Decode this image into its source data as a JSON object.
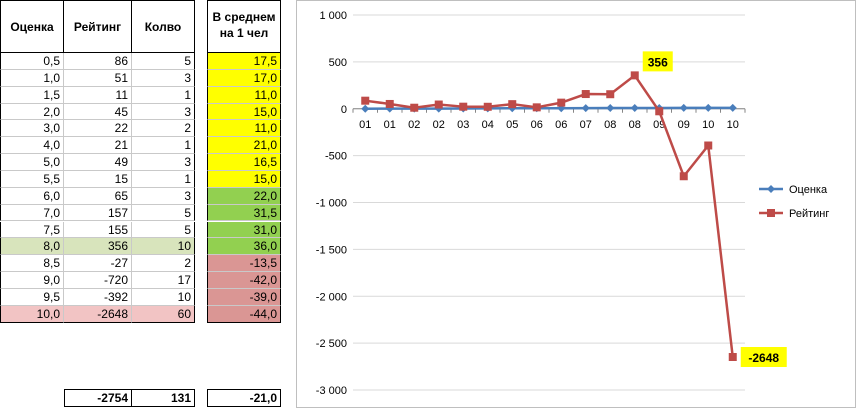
{
  "table": {
    "headers": {
      "rating": "Оценка",
      "score": "Рейтинг",
      "count": "Колво",
      "avg_line1": "В среднем",
      "avg_line2": "на 1 чел"
    },
    "rows": [
      {
        "rating": "0,5",
        "score": "86",
        "count": "5",
        "avg": "17,5",
        "avg_color": "yellow",
        "row_highlight": ""
      },
      {
        "rating": "1,0",
        "score": "51",
        "count": "3",
        "avg": "17,0",
        "avg_color": "yellow",
        "row_highlight": ""
      },
      {
        "rating": "1,5",
        "score": "11",
        "count": "1",
        "avg": "11,0",
        "avg_color": "yellow",
        "row_highlight": ""
      },
      {
        "rating": "2,0",
        "score": "45",
        "count": "3",
        "avg": "15,0",
        "avg_color": "yellow",
        "row_highlight": ""
      },
      {
        "rating": "3,0",
        "score": "22",
        "count": "2",
        "avg": "11,0",
        "avg_color": "yellow",
        "row_highlight": ""
      },
      {
        "rating": "4,0",
        "score": "21",
        "count": "1",
        "avg": "21,0",
        "avg_color": "yellow",
        "row_highlight": ""
      },
      {
        "rating": "5,0",
        "score": "49",
        "count": "3",
        "avg": "16,5",
        "avg_color": "yellow",
        "row_highlight": ""
      },
      {
        "rating": "5,5",
        "score": "15",
        "count": "1",
        "avg": "15,0",
        "avg_color": "yellow",
        "row_highlight": ""
      },
      {
        "rating": "6,0",
        "score": "65",
        "count": "3",
        "avg": "22,0",
        "avg_color": "green",
        "row_highlight": ""
      },
      {
        "rating": "7,0",
        "score": "157",
        "count": "5",
        "avg": "31,5",
        "avg_color": "green",
        "row_highlight": ""
      },
      {
        "rating": "7,5",
        "score": "155",
        "count": "5",
        "avg": "31,0",
        "avg_color": "green",
        "row_highlight": ""
      },
      {
        "rating": "8,0",
        "score": "356",
        "count": "10",
        "avg": "36,0",
        "avg_color": "green",
        "row_highlight": "green"
      },
      {
        "rating": "8,5",
        "score": "-27",
        "count": "2",
        "avg": "-13,5",
        "avg_color": "red",
        "row_highlight": ""
      },
      {
        "rating": "9,0",
        "score": "-720",
        "count": "17",
        "avg": "-42,0",
        "avg_color": "red",
        "row_highlight": ""
      },
      {
        "rating": "9,5",
        "score": "-392",
        "count": "10",
        "avg": "-39,0",
        "avg_color": "red",
        "row_highlight": ""
      },
      {
        "rating": "10,0",
        "score": "-2648",
        "count": "60",
        "avg": "-44,0",
        "avg_color": "red",
        "row_highlight": "red"
      }
    ],
    "totals": {
      "score": "-2754",
      "count": "131",
      "avg": "-21,0"
    }
  },
  "colors": {
    "yellow": "#ffff00",
    "green": "#92d050",
    "red": "#da9694",
    "row_green": "#d8e4bc",
    "row_red": "#f2c4c4",
    "series_rating": "#4a7ebb",
    "series_score": "#be4b48",
    "grid": "#d9d9d9",
    "label_bg": "#ffff00"
  },
  "chart_data": {
    "type": "line",
    "categories": [
      "01",
      "01",
      "02",
      "02",
      "03",
      "04",
      "05",
      "06",
      "06",
      "07",
      "08",
      "08",
      "09",
      "09",
      "10",
      "10"
    ],
    "ylim": [
      -3000,
      1000
    ],
    "yticks": [
      1000,
      500,
      0,
      -500,
      -1000,
      -1500,
      -2000,
      -2500,
      -3000
    ],
    "ytick_labels": [
      "1 000",
      "500",
      "0",
      "-500",
      "-1 000",
      "-1 500",
      "-2 000",
      "-2 500",
      "-3 000"
    ],
    "grid": true,
    "legend_position": "right",
    "series": [
      {
        "name": "Оценка",
        "values": [
          0.5,
          1,
          1.5,
          2,
          3,
          4,
          5,
          5.5,
          6,
          7,
          7.5,
          8,
          8.5,
          9,
          9.5,
          10
        ],
        "marker": "diamond",
        "color": "#4a7ebb"
      },
      {
        "name": "Рейтинг",
        "values": [
          86,
          51,
          11,
          45,
          22,
          21,
          49,
          15,
          65,
          157,
          155,
          356,
          -27,
          -720,
          -392,
          -2648
        ],
        "marker": "square",
        "color": "#be4b48"
      }
    ],
    "annotations": [
      {
        "index": 11,
        "series": 1,
        "text": "356"
      },
      {
        "index": 15,
        "series": 1,
        "text": "-2648"
      }
    ]
  }
}
